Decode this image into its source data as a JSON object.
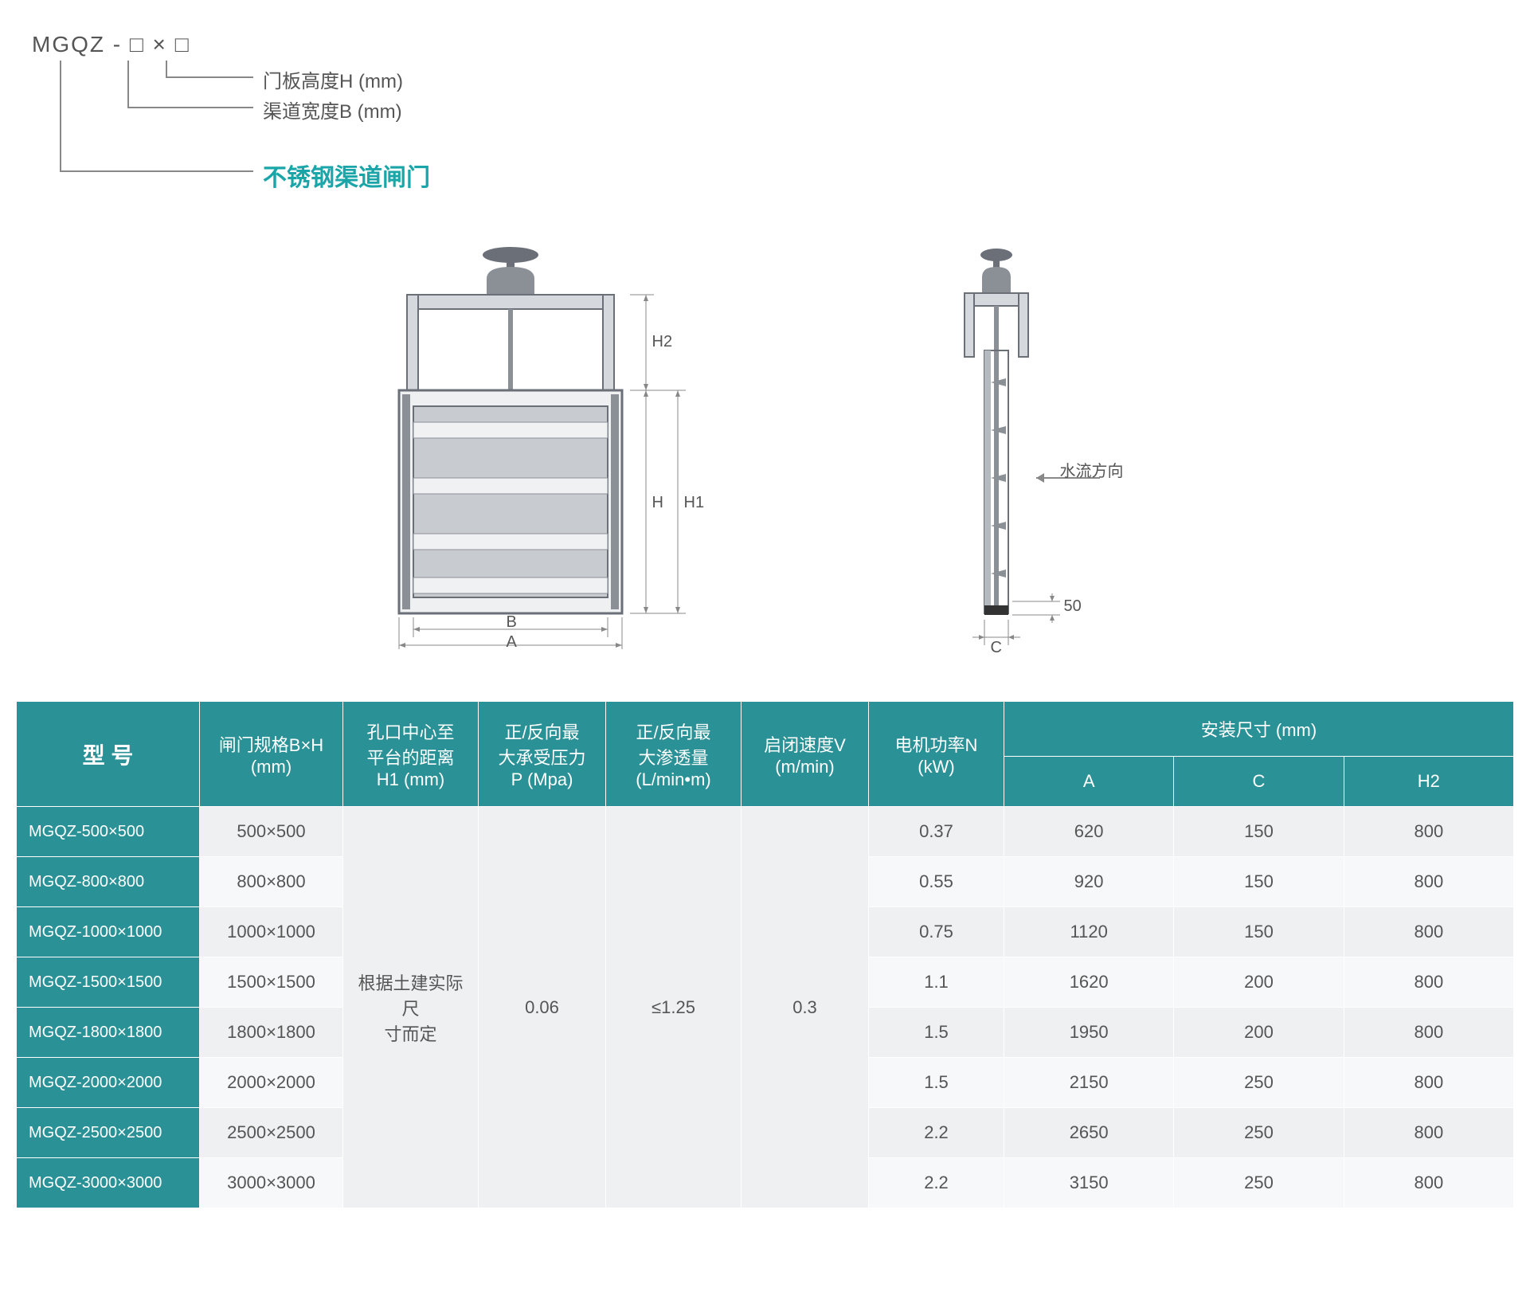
{
  "naming": {
    "code": "MGQZ - □ × □",
    "label_H": "门板高度H (mm)",
    "label_B": "渠道宽度B (mm)",
    "title": "不锈钢渠道闸门"
  },
  "diagram": {
    "labels": {
      "H2": "H2",
      "H": "H",
      "H1": "H1",
      "B": "B",
      "A": "A",
      "C": "C",
      "flow": "水流方向",
      "fifty": "50"
    },
    "colors": {
      "frame": "#6a6f78",
      "panel_light": "#d5d8dc",
      "panel_mid": "#b5bac0",
      "panel_dark": "#8b9097",
      "mechanism": "#7a7f86",
      "line": "#888888"
    }
  },
  "table": {
    "headers": {
      "model": "型 号",
      "spec": "闸门规格B×H\n(mm)",
      "h1": "孔口中心至\n平台的距离\nH1 (mm)",
      "p": "正/反向最\n大承受压力\nP (Mpa)",
      "leak": "正/反向最\n大渗透量\n(L/min•m)",
      "v": "启闭速度V\n(m/min)",
      "n": "电机功率N\n(kW)",
      "install": "安装尺寸 (mm)",
      "A": "A",
      "C": "C",
      "H2": "H2"
    },
    "merged": {
      "h1": "根据土建实际尺\n寸而定",
      "p": "0.06",
      "leak": "≤1.25",
      "v": "0.3"
    },
    "rows": [
      {
        "model": "MGQZ-500×500",
        "spec": "500×500",
        "n": "0.37",
        "A": "620",
        "C": "150",
        "H2": "800"
      },
      {
        "model": "MGQZ-800×800",
        "spec": "800×800",
        "n": "0.55",
        "A": "920",
        "C": "150",
        "H2": "800"
      },
      {
        "model": "MGQZ-1000×1000",
        "spec": "1000×1000",
        "n": "0.75",
        "A": "1120",
        "C": "150",
        "H2": "800"
      },
      {
        "model": "MGQZ-1500×1500",
        "spec": "1500×1500",
        "n": "1.1",
        "A": "1620",
        "C": "200",
        "H2": "800"
      },
      {
        "model": "MGQZ-1800×1800",
        "spec": "1800×1800",
        "n": "1.5",
        "A": "1950",
        "C": "200",
        "H2": "800"
      },
      {
        "model": "MGQZ-2000×2000",
        "spec": "2000×2000",
        "n": "1.5",
        "A": "2150",
        "C": "250",
        "H2": "800"
      },
      {
        "model": "MGQZ-2500×2500",
        "spec": "2500×2500",
        "n": "2.2",
        "A": "2650",
        "C": "250",
        "H2": "800"
      },
      {
        "model": "MGQZ-3000×3000",
        "spec": "3000×3000",
        "n": "2.2",
        "A": "3150",
        "C": "250",
        "H2": "800"
      }
    ],
    "colors": {
      "header_bg": "#2a9196",
      "header_fg": "#ffffff",
      "row_even": "#eef0f1",
      "row_odd": "#f7f8f9",
      "cell_fg": "#555555",
      "border": "#ffffff"
    }
  }
}
